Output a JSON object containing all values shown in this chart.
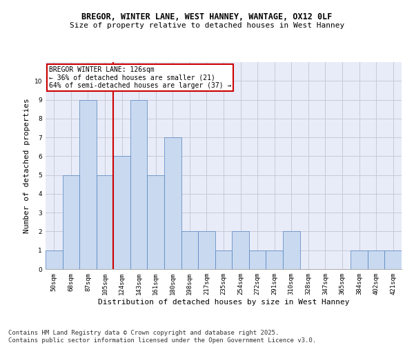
{
  "title1": "BREGOR, WINTER LANE, WEST HANNEY, WANTAGE, OX12 0LF",
  "title2": "Size of property relative to detached houses in West Hanney",
  "xlabel": "Distribution of detached houses by size in West Hanney",
  "ylabel": "Number of detached properties",
  "categories": [
    "50sqm",
    "68sqm",
    "87sqm",
    "105sqm",
    "124sqm",
    "143sqm",
    "161sqm",
    "180sqm",
    "198sqm",
    "217sqm",
    "235sqm",
    "254sqm",
    "272sqm",
    "291sqm",
    "310sqm",
    "328sqm",
    "347sqm",
    "365sqm",
    "384sqm",
    "402sqm",
    "421sqm"
  ],
  "values": [
    1,
    5,
    9,
    5,
    6,
    9,
    5,
    7,
    2,
    2,
    1,
    2,
    1,
    1,
    2,
    0,
    0,
    0,
    1,
    1,
    1
  ],
  "bar_color": "#c9d9f0",
  "bar_edge_color": "#4f81bd",
  "property_line_index": 4,
  "annotation_title": "BREGOR WINTER LANE: 126sqm",
  "annotation_line1": "← 36% of detached houses are smaller (21)",
  "annotation_line2": "64% of semi-detached houses are larger (37) →",
  "annotation_box_color": "#ffffff",
  "annotation_box_edge": "#cc0000",
  "red_line_color": "#cc0000",
  "ylim": [
    0,
    11
  ],
  "yticks": [
    0,
    1,
    2,
    3,
    4,
    5,
    6,
    7,
    8,
    9,
    10
  ],
  "grid_color": "#c8c8d8",
  "bg_color": "#e8ecf8",
  "footer": "Contains HM Land Registry data © Crown copyright and database right 2025.\nContains public sector information licensed under the Open Government Licence v3.0.",
  "title_fontsize": 8.5,
  "subtitle_fontsize": 8,
  "axis_label_fontsize": 8,
  "tick_fontsize": 6.5,
  "footer_fontsize": 6.5,
  "annot_fontsize": 7
}
